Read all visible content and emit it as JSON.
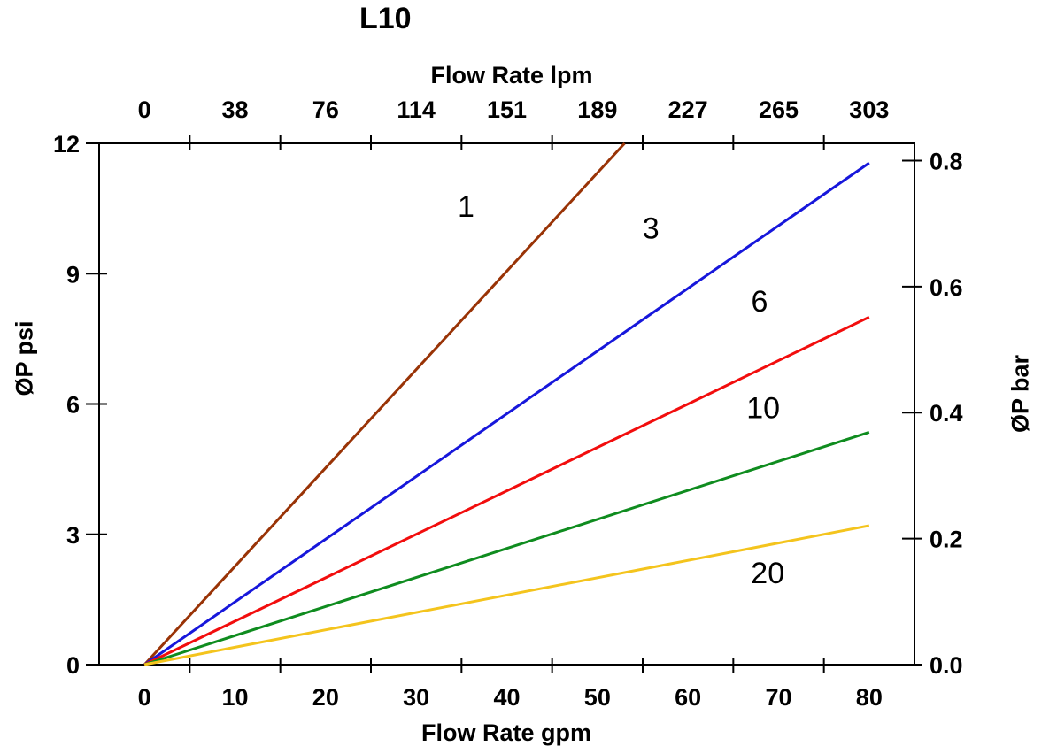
{
  "chart_data": {
    "type": "line",
    "title": "L10",
    "grid": false,
    "legend": "inline-curve-labels",
    "axes": {
      "bottom": {
        "label": "Flow Rate gpm",
        "range_gpm": [
          -5,
          85
        ],
        "tick_values": [
          0,
          10,
          20,
          30,
          40,
          50,
          60,
          70,
          80
        ],
        "tick_labels": [
          "0",
          "10",
          "20",
          "30",
          "40",
          "50",
          "60",
          "70",
          "80"
        ],
        "minor_tick_values": [
          5,
          15,
          25,
          35,
          45,
          55,
          65,
          75
        ]
      },
      "top": {
        "label": "Flow Rate lpm",
        "tick_values_gpm": [
          0,
          10,
          20,
          30,
          40,
          50,
          60,
          70,
          80
        ],
        "tick_labels": [
          "0",
          "38",
          "76",
          "114",
          "151",
          "189",
          "227",
          "265",
          "303"
        ],
        "minor_tick_values_gpm": [
          5,
          15,
          25,
          35,
          45,
          55,
          65,
          75
        ]
      },
      "left": {
        "label": "ØP psi",
        "range_psi": [
          0,
          12
        ],
        "tick_values": [
          0,
          3,
          6,
          9,
          12
        ],
        "tick_labels": [
          "0",
          "3",
          "6",
          "9",
          "12"
        ]
      },
      "right": {
        "label": "ØP bar",
        "tick_values_bar": [
          0.0,
          0.2,
          0.4,
          0.6,
          0.8
        ],
        "tick_labels": [
          "0.0",
          "0.2",
          "0.4",
          "0.6",
          "0.8"
        ],
        "psi_per_bar": 14.5038
      }
    },
    "series": [
      {
        "name": "1",
        "color": "#993306",
        "points_gpm_psi": [
          [
            0,
            0
          ],
          [
            53,
            12
          ]
        ],
        "label_at_gpm_psi": [
          35.5,
          10.55
        ]
      },
      {
        "name": "3",
        "color": "#1717DB",
        "points_gpm_psi": [
          [
            0,
            0
          ],
          [
            80,
            11.55
          ]
        ],
        "label_at_gpm_psi": [
          55.9,
          10.05
        ]
      },
      {
        "name": "6",
        "color": "#F20D0D",
        "points_gpm_psi": [
          [
            0,
            0
          ],
          [
            80,
            8.0
          ]
        ],
        "label_at_gpm_psi": [
          67.9,
          8.37
        ]
      },
      {
        "name": "10",
        "color": "#0F8C1F",
        "points_gpm_psi": [
          [
            0,
            0
          ],
          [
            80,
            5.35
          ]
        ],
        "label_at_gpm_psi": [
          68.3,
          5.92
        ]
      },
      {
        "name": "20",
        "color": "#F4C41D",
        "points_gpm_psi": [
          [
            0,
            0
          ],
          [
            80,
            3.2
          ]
        ],
        "label_at_gpm_psi": [
          68.8,
          2.12
        ]
      }
    ],
    "colors": {
      "frame": "#000000",
      "background": "#FFFFFF"
    }
  }
}
